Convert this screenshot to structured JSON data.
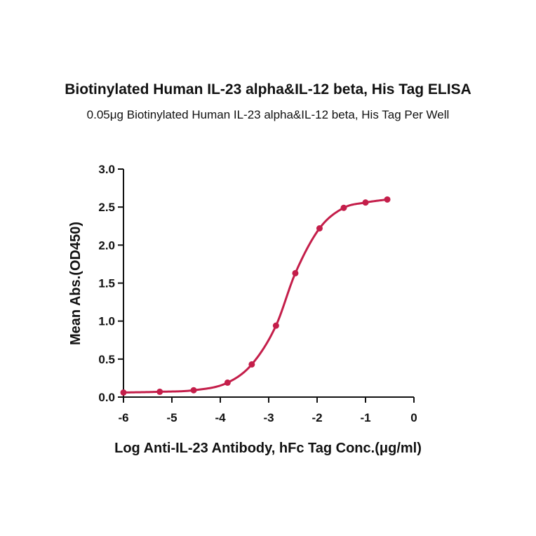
{
  "chart_data": {
    "type": "scatter",
    "title": "Biotinylated Human IL-23 alpha&IL-12 beta, His Tag ELISA",
    "subtitle": "0.05μg Biotinylated Human IL-23 alpha&IL-12 beta, His Tag Per Well",
    "xlabel": "Log Anti-IL-23 Antibody, hFc Tag Conc.(μg/ml)",
    "ylabel": "Mean Abs.(OD450)",
    "xlim": [
      -6,
      0
    ],
    "ylim": [
      0,
      3.0
    ],
    "xticks": [
      "-6",
      "-5",
      "-4",
      "-3",
      "-2",
      "-1",
      "0"
    ],
    "yticks": [
      "0.0",
      "0.5",
      "1.0",
      "1.5",
      "2.0",
      "2.5",
      "3.0"
    ],
    "grid": false,
    "fit": "4PL sigmoidal curve",
    "color": "#c41e4a",
    "series": [
      {
        "x": [
          -6.0,
          -5.25,
          -4.55,
          -3.85,
          -3.35,
          -2.85,
          -2.45,
          -1.95,
          -1.45,
          -1.0,
          -0.55
        ],
        "y": [
          0.06,
          0.07,
          0.09,
          0.19,
          0.43,
          0.94,
          1.63,
          2.22,
          2.49,
          2.56,
          2.6
        ]
      }
    ]
  }
}
